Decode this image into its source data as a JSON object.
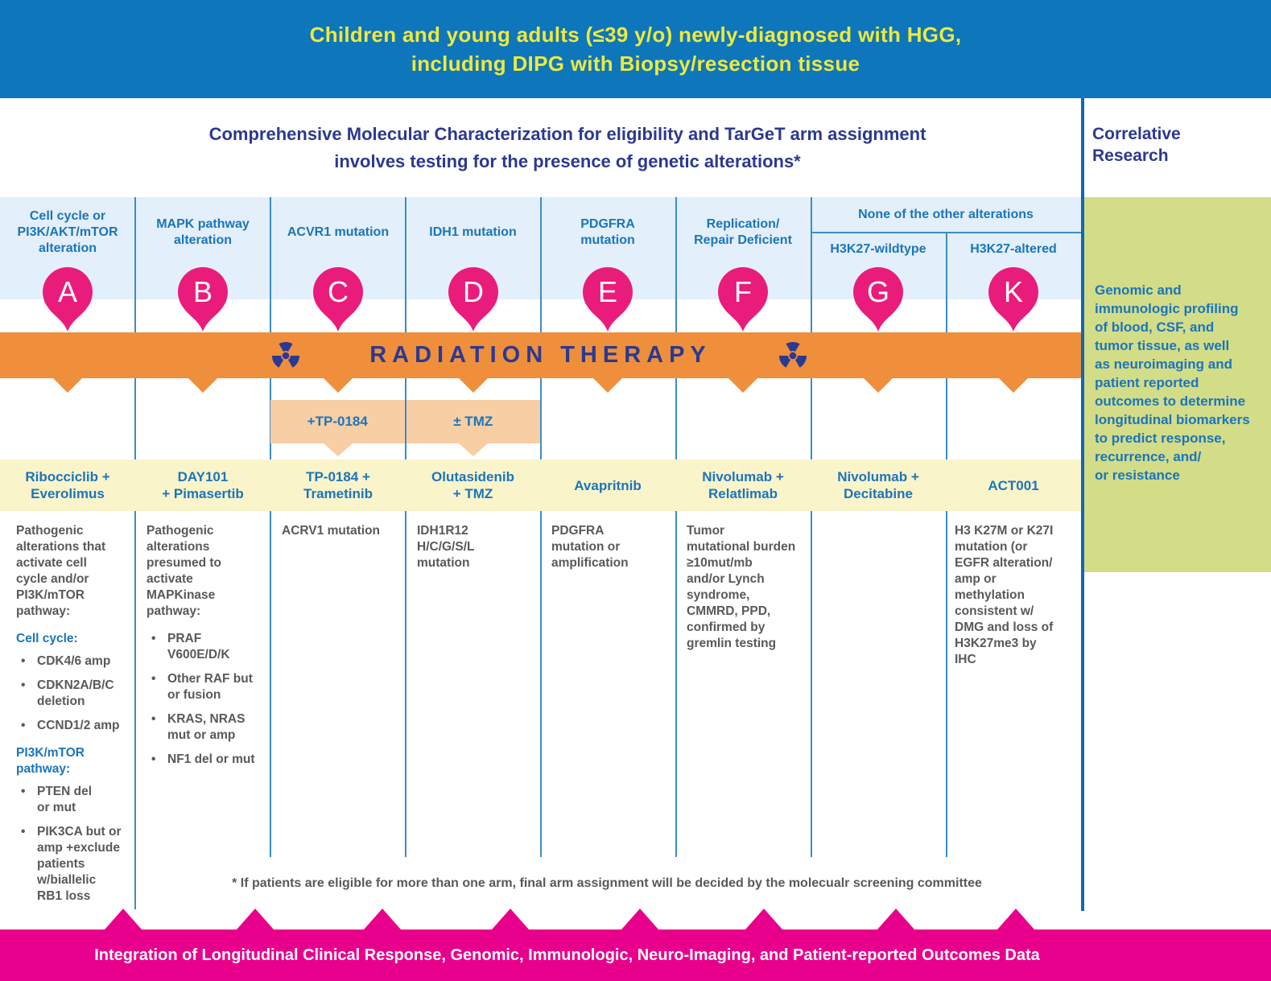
{
  "top_banner": {
    "line1": "Children and young adults (≤39 y/o) newly-diagnosed with HGG,",
    "line2": "including DIPG with Biopsy/resection tissue"
  },
  "title": {
    "line1": "Comprehensive Molecular Characterization for eligibility and TarGeT arm assignment",
    "line2": "involves testing for the presence of genetic alterations*"
  },
  "group_header": "None of the other alterations",
  "radiation": {
    "label": "RADIATION THERAPY",
    "icon": "radiation-trefoil"
  },
  "subbands": {
    "c": "+TP-0184",
    "d": "± TMZ"
  },
  "columns": [
    {
      "id": "A",
      "badge": "A",
      "header": "Cell cycle or\nPI3K/AKT/mTOR\nalteration",
      "treatment": "Ribocciclib +\nEverolimus",
      "body_blocks": [
        {
          "type": "p",
          "text": "Pathogenic\nalterations that\nactivate cell\ncycle and/or\nPI3K/mTOR\npathway:"
        },
        {
          "type": "subhead",
          "text": "Cell cycle:"
        },
        {
          "type": "bullet",
          "text": "CDK4/6 amp"
        },
        {
          "type": "bullet",
          "text": "CDKN2A/B/C\ndeletion"
        },
        {
          "type": "bullet",
          "text": "CCND1/2 amp"
        },
        {
          "type": "subhead",
          "text": "PI3K/mTOR\npathway:"
        },
        {
          "type": "bullet",
          "text": "PTEN del\nor mut"
        },
        {
          "type": "bullet",
          "text": "PIK3CA but or\namp +exclude\npatients\nw/biallelic\nRB1 loss"
        }
      ]
    },
    {
      "id": "B",
      "badge": "B",
      "header": "MAPK pathway\nalteration",
      "treatment": "DAY101\n+ Pimasertib",
      "body_blocks": [
        {
          "type": "p",
          "text": "Pathogenic\nalterations\npresumed to\nactivate\nMAPKinase\npathway:"
        },
        {
          "type": "bullet",
          "text": "PRAF\nV600E/D/K"
        },
        {
          "type": "bullet",
          "text": "Other RAF but\nor fusion"
        },
        {
          "type": "bullet",
          "text": "KRAS, NRAS\nmut or amp"
        },
        {
          "type": "bullet",
          "text": "NF1 del or mut"
        }
      ]
    },
    {
      "id": "C",
      "badge": "C",
      "header": "ACVR1 mutation",
      "treatment": "TP-0184 +\nTrametinib",
      "body_blocks": [
        {
          "type": "p",
          "text": "ACRV1 mutation"
        }
      ]
    },
    {
      "id": "D",
      "badge": "D",
      "header": "IDH1 mutation",
      "treatment": "Olutasidenib\n+ TMZ",
      "body_blocks": [
        {
          "type": "p",
          "text": "IDH1R12\nH/C/G/S/L\nmutation"
        }
      ]
    },
    {
      "id": "E",
      "badge": "E",
      "header": "PDGFRA\nmutation",
      "treatment": "Avapritnib",
      "body_blocks": [
        {
          "type": "p",
          "text": "PDGFRA\nmutation or\namplification"
        }
      ]
    },
    {
      "id": "F",
      "badge": "F",
      "header": "Replication/\nRepair Deficient",
      "treatment": "Nivolumab +\nRelatlimab",
      "body_blocks": [
        {
          "type": "p",
          "text": "Tumor\nmutational burden\n≥10mut/mb\nand/or Lynch\nsyndrome,\nCMMRD, PPD,\nconfirmed by\ngremlin testing"
        }
      ]
    },
    {
      "id": "G",
      "badge": "G",
      "header": "H3K27-wildtype",
      "treatment": "Nivolumab +\nDecitabine",
      "body_blocks": []
    },
    {
      "id": "K",
      "badge": "K",
      "header": "H3K27-altered",
      "treatment": "ACT001",
      "body_blocks": [
        {
          "type": "p",
          "text": "H3 K27M or K27I\nmutation (or\nEGFR alteration/\namp or\nmethylation\nconsistent w/\nDMG and loss of\nH3K27me3 by\nIHC"
        }
      ]
    }
  ],
  "footnote": "* If patients are eligible for more than one arm, final arm assignment will be decided by the molecualr screening committee",
  "bottom_banner": "Integration of Longitudinal Clinical Response, Genomic, Immunologic, Neuro-Imaging, and Patient-reported Outcomes Data",
  "sidebar": {
    "heading": "Correlative\nResearch",
    "body": "Genomic and\nimmunologic profiling\nof blood, CSF, and\ntumor tissue, as well\nas neuroimaging and\npatient reported\noutcomes to determine\nlongitudinal biomarkers\nto predict response,\nrecurrence, and/\nor resistance"
  },
  "colors": {
    "banner_blue": "#0e76ba",
    "navy_text": "#2b3990",
    "blue_text": "#1b75bb",
    "header_bg": "#e3effa",
    "badge_pink": "#e91c7c",
    "bottom_pink": "#e8008c",
    "orange_band": "#ef8f3c",
    "light_orange": "#f8cea4",
    "yellow_row": "#faf4cb",
    "green_box": "#d3dc87",
    "gray_text": "#58595b",
    "yellow_banner_text": "#efe93d",
    "divider_blue": "#3c8dc5"
  }
}
